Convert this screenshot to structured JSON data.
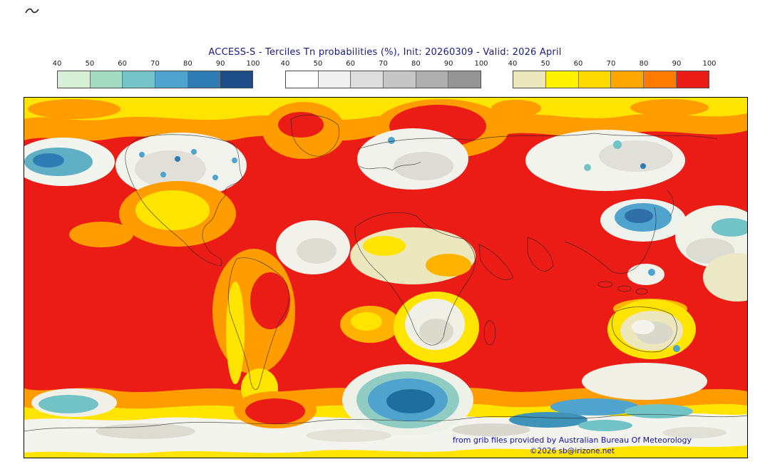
{
  "header": {
    "title": "ACCESS-S - Terciles Tn probabilities (%), Init: 20260309 - Valid: 2026 April"
  },
  "colorbars": [
    {
      "id": "blue-scale",
      "ticks": [
        "40",
        "50",
        "60",
        "70",
        "80",
        "90",
        "100"
      ],
      "colors": [
        "#d7eed7",
        "#a3dcc3",
        "#74c4c8",
        "#4fa3cd",
        "#2f7cb5",
        "#1c4d86"
      ]
    },
    {
      "id": "gray-scale",
      "ticks": [
        "40",
        "50",
        "60",
        "70",
        "80",
        "90",
        "100"
      ],
      "colors": [
        "#ffffff",
        "#f0f0f0",
        "#dddddd",
        "#c6c6c6",
        "#aeaeae",
        "#959595"
      ]
    },
    {
      "id": "warm-scale",
      "ticks": [
        "40",
        "50",
        "60",
        "70",
        "80",
        "90",
        "100"
      ],
      "colors": [
        "#ece7bd",
        "#fff200",
        "#ffd900",
        "#ffa600",
        "#ff7a00",
        "#ea1c15"
      ]
    }
  ],
  "map": {
    "credit": "from grib files provided by Australian Bureau Of Meteorology",
    "copyright": "©2026 sb@irizone.net"
  },
  "chart_data": {
    "type": "heatmap",
    "subtype": "global filled-contour tercile probability map",
    "title": "ACCESS-S - Terciles Tn probabilities (%), Init: 20260309 - Valid: 2026 April",
    "model": "ACCESS-S",
    "variable": "Terciles Tn probabilities (%)",
    "init": "20260309",
    "valid": "2026 April",
    "legend_position": "top",
    "map_extent": {
      "lon": [
        -180,
        180
      ],
      "lat": [
        -90,
        90
      ]
    },
    "scales": [
      {
        "palette": "greens-blues",
        "unit": "%",
        "ticks": [
          40,
          50,
          60,
          70,
          80,
          90,
          100
        ],
        "colors": [
          "#d7eed7",
          "#a3dcc3",
          "#74c4c8",
          "#4fa3cd",
          "#2f7cb5",
          "#1c4d86"
        ]
      },
      {
        "palette": "white-grays",
        "unit": "%",
        "ticks": [
          40,
          50,
          60,
          70,
          80,
          90,
          100
        ],
        "colors": [
          "#ffffff",
          "#f0f0f0",
          "#dddddd",
          "#c6c6c6",
          "#aeaeae",
          "#959595"
        ]
      },
      {
        "palette": "yellow-orange-red",
        "unit": "%",
        "ticks": [
          40,
          50,
          60,
          70,
          80,
          90,
          100
        ],
        "colors": [
          "#ece7bd",
          "#fff200",
          "#ffd900",
          "#ffa600",
          "#ff7a00",
          "#ea1c15"
        ]
      }
    ],
    "regions_summary": [
      "Tropical and subtropical oceans dominated by 90-100% probability in the warm (red) scale",
      "High-latitude fringes and scattered mid-latitude bands at 50-80% (yellow to orange)",
      "White/gray patches (gray scale 40-60%) over northern Canada, Europe, central Siberia, the mid-Atlantic, southern Africa interior and central Australia",
      "Blue-green patches (blue scale) over the North Pacific, East Asia near Japan, Tibet/East China, Southern Ocean south of Africa and south of Australia, and along the Antarctic coast"
    ]
  }
}
